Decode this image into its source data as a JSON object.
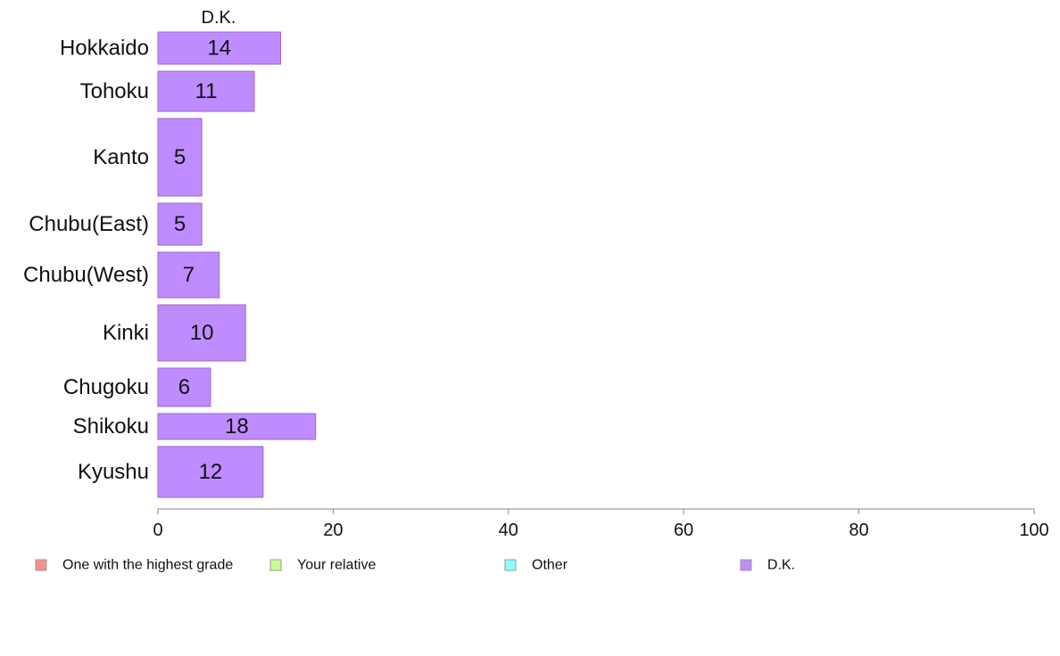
{
  "chart_data": {
    "type": "bar",
    "orientation": "horizontal",
    "series_title": "D.K.",
    "categories": [
      "Hokkaido",
      "Tohoku",
      "Kanto",
      "Chubu(East)",
      "Chubu(West)",
      "Kinki",
      "Chugoku",
      "Shikoku",
      "Kyushu"
    ],
    "values": [
      14,
      11,
      5,
      5,
      7,
      10,
      6,
      18,
      12
    ],
    "value_labels": [
      "14",
      "11",
      "5",
      "5",
      "7",
      "10",
      "6",
      "18",
      "12"
    ],
    "xlim": [
      0,
      100
    ],
    "xticks": [
      "0",
      "20",
      "40",
      "60",
      "80",
      "100"
    ],
    "xlabel": "",
    "ylabel": "",
    "grid": false,
    "bar_color": "#bf8cff",
    "bar_stroke": "#9a66cc",
    "legend_position": "bottom",
    "legend": [
      {
        "label": "One with the highest grade",
        "color": "#ff8c8c"
      },
      {
        "label": "Your relative",
        "color": "#c8ff8c"
      },
      {
        "label": "Other",
        "color": "#8cffff"
      },
      {
        "label": "D.K.",
        "color": "#bf8cff"
      }
    ]
  }
}
